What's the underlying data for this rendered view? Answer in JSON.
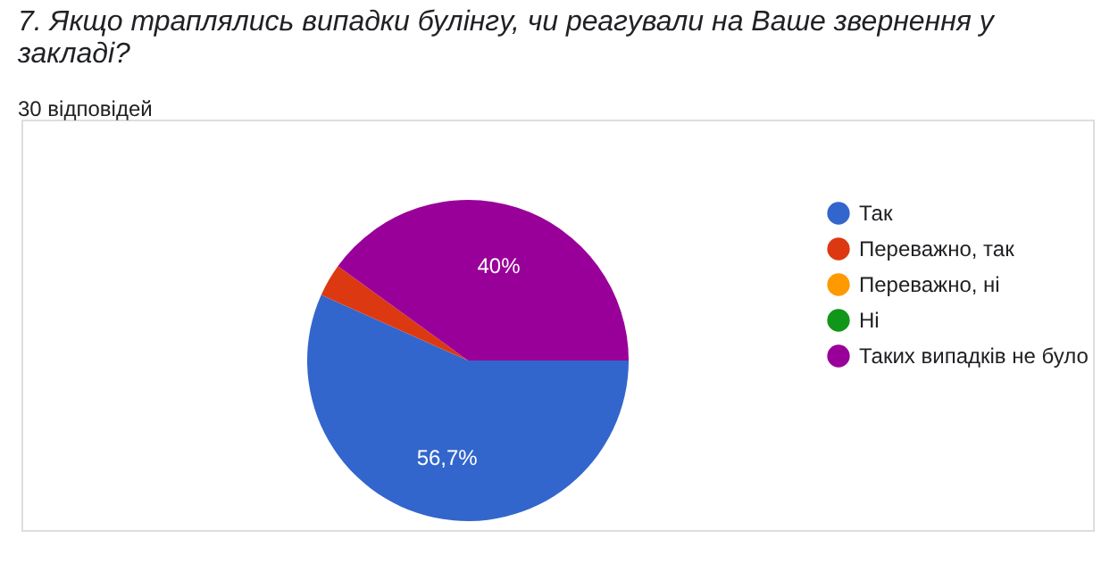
{
  "chart_data": {
    "type": "pie",
    "title": "7.    Якщо траплялись випадки булінгу, чи реагували на Ваше звернення у закладі?",
    "subtitle": "30 відповідей",
    "categories": [
      "Так",
      "Переважно, так",
      "Переважно, ні",
      "Ні",
      "Таких випадків не було"
    ],
    "values": [
      56.7,
      3.3,
      0,
      0,
      40
    ],
    "colors": [
      "#3366cc",
      "#dc3912",
      "#ff9900",
      "#109618",
      "#990099"
    ],
    "value_labels": [
      "56,7%",
      null,
      null,
      null,
      "40%"
    ],
    "legend": "right"
  }
}
